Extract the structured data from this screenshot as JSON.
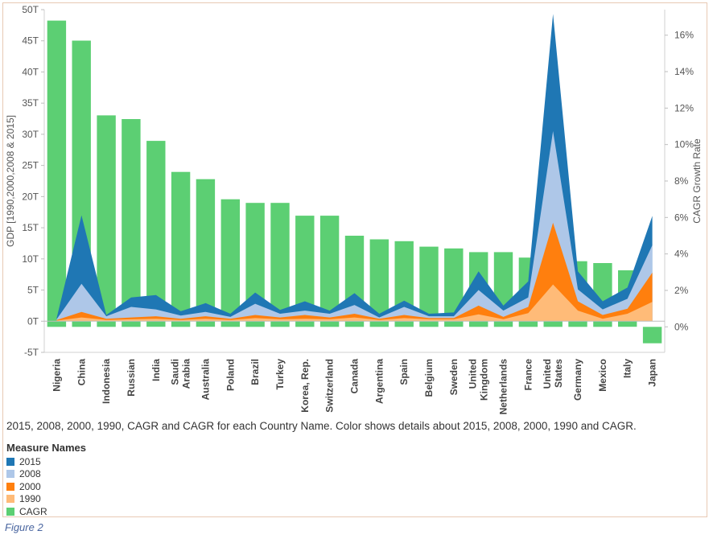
{
  "chart_data": {
    "type": "bar+area",
    "categories": [
      "Nigeria",
      "China",
      "Indonesia",
      "Russian",
      "India",
      "Saudi Arabia",
      "Australia",
      "Poland",
      "Brazil",
      "Turkey",
      "Korea, Rep.",
      "Switzerland",
      "Canada",
      "Argentina",
      "Spain",
      "Belgium",
      "Sweden",
      "United Kingdom",
      "Netherlands",
      "France",
      "United States",
      "Germany",
      "Mexico",
      "Italy",
      "Japan"
    ],
    "category_lines": [
      [
        "Nigeria"
      ],
      [
        "China"
      ],
      [
        "Indonesia"
      ],
      [
        "Russian"
      ],
      [
        "India"
      ],
      [
        "Saudi",
        "Arabia"
      ],
      [
        "Australia"
      ],
      [
        "Poland"
      ],
      [
        "Brazil"
      ],
      [
        "Turkey"
      ],
      [
        "Korea, Rep."
      ],
      [
        "Switzerland"
      ],
      [
        "Canada"
      ],
      [
        "Argentina"
      ],
      [
        "Spain"
      ],
      [
        "Belgium"
      ],
      [
        "Sweden"
      ],
      [
        "United",
        "Kingdom"
      ],
      [
        "Netherlands"
      ],
      [
        "France"
      ],
      [
        "United",
        "States"
      ],
      [
        "Germany"
      ],
      [
        "Mexico"
      ],
      [
        "Italy"
      ],
      [
        "Japan"
      ]
    ],
    "ylabel": "GDP [1990,2000,2008 & 2015]",
    "y2label": "CAGR Growth Rate",
    "ylim": [
      -5,
      50
    ],
    "yticks": [
      -5,
      0,
      5,
      10,
      15,
      20,
      25,
      30,
      35,
      40,
      45,
      50
    ],
    "ytick_labels": [
      "-5T",
      "0T",
      "5T",
      "10T",
      "15T",
      "20T",
      "25T",
      "30T",
      "35T",
      "40T",
      "45T",
      "50T"
    ],
    "y2lim": [
      -1.4,
      17.4
    ],
    "y2ticks": [
      0,
      2,
      4,
      6,
      8,
      10,
      12,
      14,
      16
    ],
    "y2tick_labels": [
      "0%",
      "2%",
      "4%",
      "6%",
      "8%",
      "10%",
      "12%",
      "14%",
      "16%"
    ],
    "series": [
      {
        "name": "CAGR",
        "axis": "right",
        "color": "#5ccf73",
        "kind": "bar",
        "values": [
          16.8,
          15.7,
          11.6,
          11.4,
          10.2,
          8.5,
          8.1,
          7.0,
          6.8,
          6.8,
          6.1,
          6.1,
          5.0,
          4.8,
          4.7,
          4.4,
          4.3,
          4.1,
          4.1,
          3.8,
          3.6,
          3.6,
          3.5,
          3.1,
          -0.9
        ]
      },
      {
        "name": "2015",
        "axis": "left",
        "color": "#1f77b4",
        "kind": "area",
        "values": [
          0.5,
          17.0,
          1.0,
          3.8,
          4.2,
          1.6,
          2.9,
          1.2,
          4.6,
          1.8,
          3.2,
          1.7,
          4.5,
          1.2,
          3.3,
          1.2,
          1.4,
          8.0,
          2.5,
          6.4,
          49.3,
          8.0,
          3.2,
          5.4,
          16.9
        ]
      },
      {
        "name": "2008",
        "axis": "left",
        "color": "#aec7e8",
        "kind": "area",
        "values": [
          0.3,
          6.0,
          0.8,
          2.3,
          1.9,
          0.9,
          1.5,
          0.7,
          2.8,
          1.2,
          1.7,
          1.2,
          2.6,
          0.6,
          2.3,
          0.8,
          0.8,
          5.0,
          1.7,
          3.8,
          30.5,
          5.1,
          1.9,
          3.6,
          12.2
        ]
      },
      {
        "name": "2000",
        "axis": "left",
        "color": "#ff7f0e",
        "kind": "area",
        "values": [
          0.2,
          1.5,
          0.4,
          0.6,
          0.8,
          0.4,
          0.8,
          0.4,
          1.0,
          0.6,
          1.0,
          0.6,
          1.2,
          0.4,
          1.0,
          0.5,
          0.5,
          2.5,
          0.7,
          2.3,
          15.8,
          3.2,
          1.0,
          2.0,
          7.8
        ]
      },
      {
        "name": "1990",
        "axis": "left",
        "color": "#ffbb78",
        "kind": "area",
        "values": [
          0.1,
          0.6,
          0.2,
          0.3,
          0.4,
          0.2,
          0.4,
          0.2,
          0.5,
          0.3,
          0.4,
          0.3,
          0.6,
          0.2,
          0.5,
          0.3,
          0.3,
          1.1,
          0.3,
          1.3,
          5.9,
          1.7,
          0.4,
          1.2,
          3.1
        ]
      }
    ],
    "grid": false,
    "legend_placement": "bottom-left"
  },
  "caption": "2015, 2008, 2000, 1990, CAGR and CAGR for each Country Name.  Color shows details about 2015, 2008, 2000, 1990 and CAGR.",
  "legend": {
    "title": "Measure Names",
    "items": [
      {
        "label": "2015",
        "color": "#1f77b4"
      },
      {
        "label": "2008",
        "color": "#aec7e8"
      },
      {
        "label": "2000",
        "color": "#ff7f0e"
      },
      {
        "label": "1990",
        "color": "#ffbb78"
      },
      {
        "label": "CAGR",
        "color": "#5ccf73"
      }
    ]
  },
  "figure_label": "Figure 2"
}
